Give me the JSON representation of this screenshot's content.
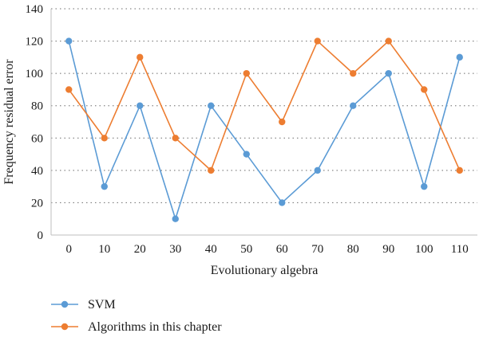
{
  "chart_data": {
    "type": "line",
    "x": [
      0,
      10,
      20,
      30,
      40,
      50,
      60,
      70,
      80,
      90,
      100,
      110
    ],
    "x_tick_labels": [
      "0",
      "10",
      "20",
      "30",
      "40",
      "50",
      "60",
      "70",
      "80",
      "90",
      "100",
      "110"
    ],
    "y_tick_labels": [
      "0",
      "20",
      "40",
      "60",
      "80",
      "100",
      "120",
      "140"
    ],
    "ylim": [
      0,
      140
    ],
    "xlabel": "Evolutionary algebra",
    "ylabel": "Frequency residual error",
    "grid": "horizontal dotted",
    "legend_position": "bottom",
    "series": [
      {
        "name": "SVM",
        "color": "#5b9bd5",
        "values": [
          120,
          30,
          80,
          10,
          80,
          50,
          20,
          40,
          80,
          100,
          30,
          110
        ]
      },
      {
        "name": "Algorithms in this chapter",
        "color": "#ed7d31",
        "values": [
          90,
          60,
          110,
          60,
          40,
          100,
          70,
          120,
          100,
          120,
          90,
          40
        ]
      }
    ]
  }
}
